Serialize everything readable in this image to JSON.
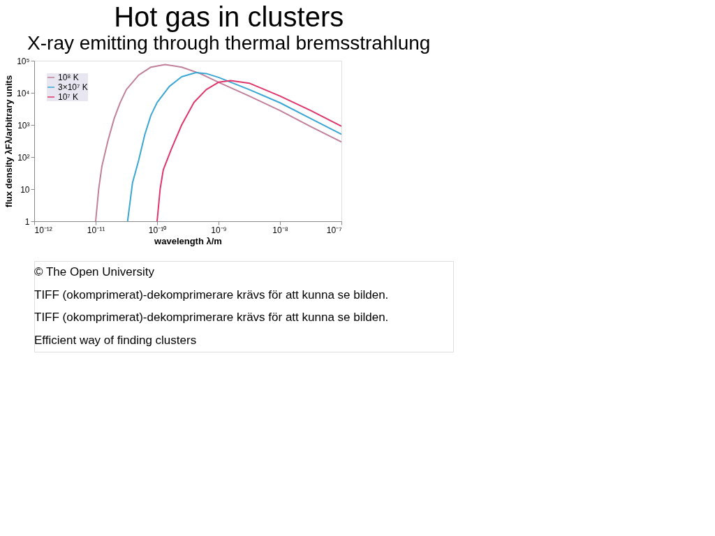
{
  "chart_data": {
    "type": "line",
    "title": "Hot gas in clusters",
    "subtitle": "X-ray emitting through thermal bremsstrahlung",
    "xlabel": "wavelength λ/m",
    "ylabel": "flux density λFλ/arbitrary units",
    "log": "xy",
    "grid": false,
    "legend": "top left",
    "marker": "none",
    "line_style": "solid",
    "xlim": [
      1e-12,
      1e-07
    ],
    "xticks": [
      {
        "value": 1e-12,
        "label": "10⁻¹²"
      },
      {
        "value": 1e-11,
        "label": "10⁻¹¹"
      },
      {
        "value": 1e-10,
        "label": "10⁻¹⁰"
      },
      {
        "value": 1e-09,
        "label": "10⁻⁹"
      },
      {
        "value": 1e-08,
        "label": "10⁻⁸"
      },
      {
        "value": 1e-07,
        "label": "10⁻⁷"
      }
    ],
    "ylim": [
      1,
      100000
    ],
    "yticks": [
      1,
      10,
      {
        "value": 100,
        "label": "10²"
      },
      {
        "value": 1000,
        "label": "10³"
      },
      {
        "value": 10000,
        "label": "10⁴"
      },
      {
        "value": 100000,
        "label": "10⁵"
      }
    ],
    "series": [
      {
        "name": "10⁸ K",
        "color": "#c0809a",
        "x": [
          1e-11,
          1.12e-11,
          1.26e-11,
          1.58e-11,
          2e-11,
          2.51e-11,
          3.16e-11,
          5.01e-11,
          7.94e-11,
          1.35e-10,
          2.51e-10,
          5.01e-10,
          1e-09,
          3.16e-09,
          1e-08,
          3.16e-08,
          1e-07
        ],
        "values": [
          1,
          10,
          50,
          316,
          1580,
          5000,
          12600,
          35500,
          63100,
          75900,
          63100,
          39800,
          21400,
          7940,
          2820,
          891,
          295
        ]
      },
      {
        "name": "3×10⁷ K",
        "color": "#3aa6d4",
        "x": [
          3.31e-11,
          3.98e-11,
          5.01e-11,
          6.31e-11,
          7.94e-11,
          1e-10,
          1.58e-10,
          2.51e-10,
          4.27e-10,
          6.31e-10,
          1e-09,
          3.16e-09,
          1e-08,
          3.16e-08,
          1e-07
        ],
        "values": [
          1,
          15.8,
          79,
          501,
          2000,
          5000,
          15800,
          31600,
          42700,
          39800,
          30200,
          12600,
          4900,
          1580,
          513
        ]
      },
      {
        "name": "10⁷ K",
        "color": "#e0356a",
        "x": [
          1e-10,
          1.12e-10,
          1.26e-10,
          1.7e-10,
          2.51e-10,
          3.98e-10,
          6.31e-10,
          1e-09,
          1.58e-09,
          3.16e-09,
          1e-08,
          3.16e-08,
          1e-07
        ],
        "values": [
          1,
          10,
          39.8,
          174,
          1000,
          5010,
          12600,
          21400,
          24000,
          20000,
          7940,
          2820,
          912
        ]
      }
    ],
    "annotations": [
      "© The Open University",
      "TIFF (okomprimerat)-dekomprimerare krävs för att kunna se bilden.",
      "TIFF (okomprimerat)-dekomprimerare krävs för att kunna se bilden.",
      "Efficient way of finding clusters"
    ]
  }
}
